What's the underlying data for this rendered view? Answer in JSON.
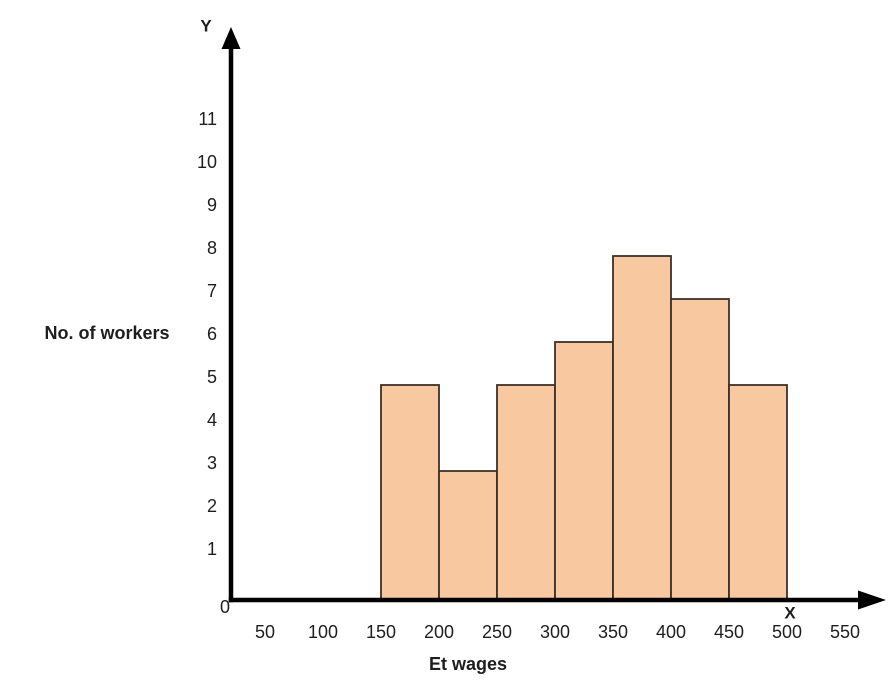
{
  "figure": {
    "y_axis_letter": "Y",
    "x_axis_letter": "X",
    "origin_label": "0",
    "background": "#ffffff"
  },
  "chart_data": {
    "type": "bar",
    "variant": "histogram",
    "title": "",
    "xlabel": "Et wages",
    "ylabel": "No. of workers",
    "bin_width": 50,
    "categories": [
      "150-200",
      "200-250",
      "250-300",
      "300-350",
      "350-400",
      "400-450",
      "450-500"
    ],
    "values": [
      5,
      3,
      5,
      6,
      8,
      7,
      5
    ],
    "bins": [
      {
        "range": "150-200",
        "start": 150,
        "end": 200,
        "value": 5
      },
      {
        "range": "200-250",
        "start": 200,
        "end": 250,
        "value": 3
      },
      {
        "range": "250-300",
        "start": 250,
        "end": 300,
        "value": 5
      },
      {
        "range": "300-350",
        "start": 300,
        "end": 350,
        "value": 6
      },
      {
        "range": "350-400",
        "start": 350,
        "end": 400,
        "value": 8
      },
      {
        "range": "400-450",
        "start": 400,
        "end": 450,
        "value": 7
      },
      {
        "range": "450-500",
        "start": 450,
        "end": 500,
        "value": 5
      }
    ],
    "x_ticks": [
      50,
      100,
      150,
      200,
      250,
      300,
      350,
      400,
      450,
      500,
      550
    ],
    "y_ticks": [
      1,
      2,
      3,
      4,
      5,
      6,
      7,
      8,
      9,
      10,
      11
    ],
    "xlim": [
      0,
      575
    ],
    "ylim": [
      0,
      13
    ],
    "grid": false,
    "legend": false,
    "colors": {
      "bar_fill": "#F8C9A0",
      "bar_stroke": "#3D3128",
      "axis": "#000000",
      "text": "#1E1E1E"
    }
  }
}
